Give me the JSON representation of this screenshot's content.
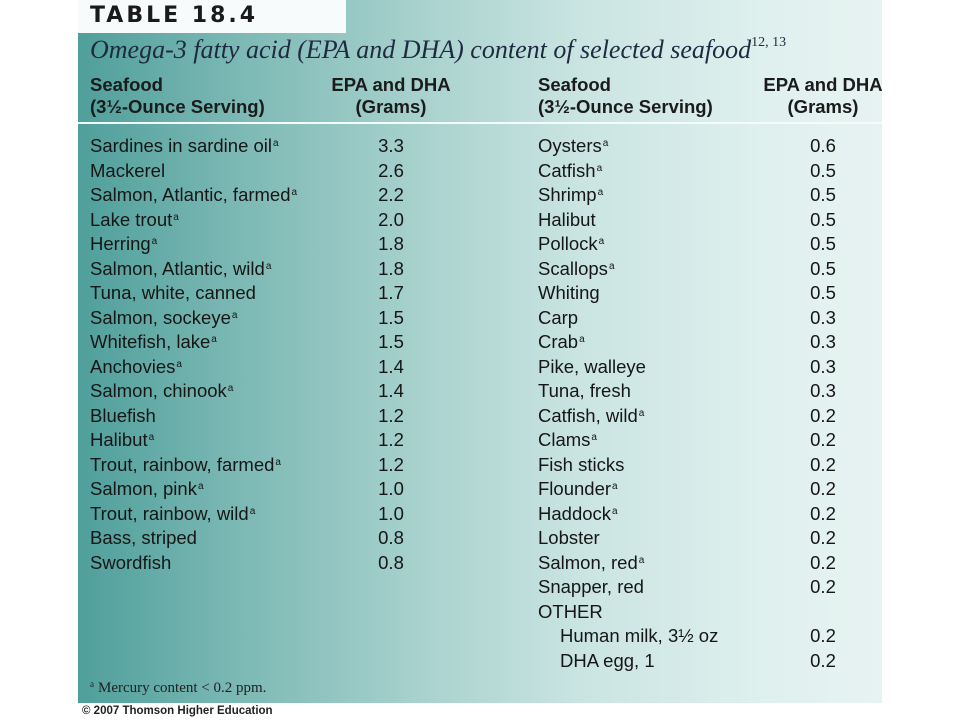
{
  "table_number": "TABLE 18.4",
  "caption": {
    "text": "Omega-3 fatty acid (EPA and DHA) content of selected seafood",
    "refs": "12, 13"
  },
  "headers": {
    "seafood_line1": "Seafood",
    "seafood_line2": "(3½-Ounce Serving)",
    "value_line1": "EPA and DHA",
    "value_line2": "(Grams)"
  },
  "footnote_marker": "a",
  "left_rows": [
    {
      "name": "Sardines in sardine oil",
      "mark": "a",
      "value": "3.3"
    },
    {
      "name": "Mackerel",
      "mark": "",
      "value": "2.6"
    },
    {
      "name": "Salmon, Atlantic, farmed",
      "mark": "a",
      "value": "2.2"
    },
    {
      "name": "Lake trout",
      "mark": "a",
      "value": "2.0"
    },
    {
      "name": "Herring",
      "mark": "a",
      "value": "1.8"
    },
    {
      "name": "Salmon, Atlantic, wild",
      "mark": "a",
      "value": "1.8"
    },
    {
      "name": "Tuna, white, canned",
      "mark": "",
      "value": "1.7"
    },
    {
      "name": "Salmon, sockeye",
      "mark": "a",
      "value": "1.5"
    },
    {
      "name": "Whitefish, lake",
      "mark": "a",
      "value": "1.5"
    },
    {
      "name": "Anchovies",
      "mark": "a",
      "value": "1.4"
    },
    {
      "name": "Salmon, chinook",
      "mark": "a",
      "value": "1.4"
    },
    {
      "name": "Bluefish",
      "mark": "",
      "value": "1.2"
    },
    {
      "name": "Halibut",
      "mark": "a",
      "value": "1.2"
    },
    {
      "name": "Trout, rainbow, farmed",
      "mark": "a",
      "value": "1.2"
    },
    {
      "name": "Salmon, pink",
      "mark": "a",
      "value": "1.0"
    },
    {
      "name": "Trout, rainbow, wild",
      "mark": "a",
      "value": "1.0"
    },
    {
      "name": "Bass, striped",
      "mark": "",
      "value": "0.8"
    },
    {
      "name": "Swordfish",
      "mark": "",
      "value": "0.8"
    }
  ],
  "right_rows": [
    {
      "name": "Oysters",
      "mark": "a",
      "value": "0.6",
      "indent": false
    },
    {
      "name": "Catfish",
      "mark": "a",
      "value": "0.5",
      "indent": false
    },
    {
      "name": "Shrimp",
      "mark": "a",
      "value": "0.5",
      "indent": false
    },
    {
      "name": "Halibut",
      "mark": "",
      "value": "0.5",
      "indent": false
    },
    {
      "name": "Pollock",
      "mark": "a",
      "value": "0.5",
      "indent": false
    },
    {
      "name": "Scallops",
      "mark": "a",
      "value": "0.5",
      "indent": false
    },
    {
      "name": "Whiting",
      "mark": "",
      "value": "0.5",
      "indent": false
    },
    {
      "name": "Carp",
      "mark": "",
      "value": "0.3",
      "indent": false
    },
    {
      "name": "Crab",
      "mark": "a",
      "value": "0.3",
      "indent": false
    },
    {
      "name": "Pike, walleye",
      "mark": "",
      "value": "0.3",
      "indent": false
    },
    {
      "name": "Tuna, fresh",
      "mark": "",
      "value": "0.3",
      "indent": false
    },
    {
      "name": "Catfish, wild",
      "mark": "a",
      "value": "0.2",
      "indent": false
    },
    {
      "name": "Clams",
      "mark": "a",
      "value": "0.2",
      "indent": false
    },
    {
      "name": "Fish sticks",
      "mark": "",
      "value": "0.2",
      "indent": false
    },
    {
      "name": "Flounder",
      "mark": "a",
      "value": "0.2",
      "indent": false
    },
    {
      "name": "Haddock",
      "mark": "a",
      "value": "0.2",
      "indent": false
    },
    {
      "name": "Lobster",
      "mark": "",
      "value": "0.2",
      "indent": false
    },
    {
      "name": "Salmon, red",
      "mark": "a",
      "value": "0.2",
      "indent": false
    },
    {
      "name": "Snapper, red",
      "mark": "",
      "value": "0.2",
      "indent": false
    },
    {
      "name": "OTHER",
      "mark": "",
      "value": "",
      "indent": false
    },
    {
      "name": "Human milk, 3½ oz",
      "mark": "",
      "value": "0.2",
      "indent": true
    },
    {
      "name": "DHA egg, 1",
      "mark": "",
      "value": "0.2",
      "indent": true
    }
  ],
  "footnote": "Mercury content < 0.2 ppm.",
  "copyright": "© 2007 Thomson Higher Education",
  "colors": {
    "panel_left": "#4f9f9b",
    "panel_right": "#e7f3f2",
    "title_box": "#f7fbfb",
    "caption_text": "#1f2a40"
  }
}
